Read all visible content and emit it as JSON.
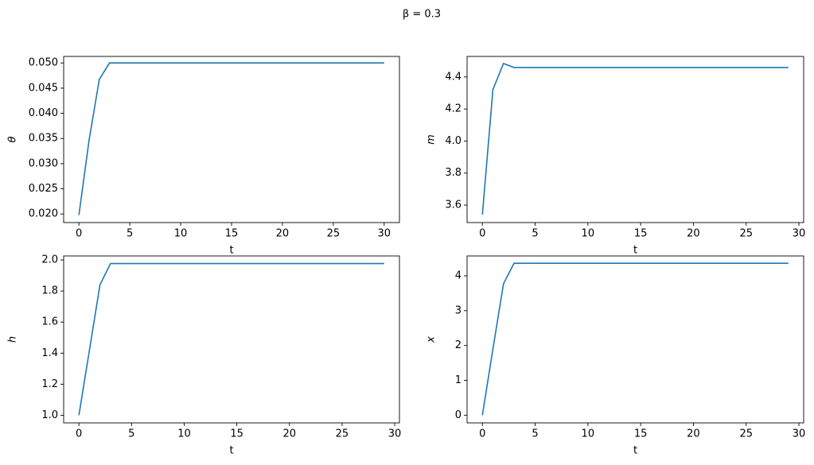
{
  "title": "β = 0.3",
  "chart_data": [
    {
      "type": "line",
      "xlabel": "t",
      "ylabel": "θ",
      "x": [
        0,
        1,
        2,
        3,
        4,
        5,
        6,
        7,
        8,
        9,
        10,
        11,
        12,
        13,
        14,
        15,
        16,
        17,
        18,
        19,
        20,
        21,
        22,
        23,
        24,
        25,
        26,
        27,
        28,
        29,
        30
      ],
      "series": [
        {
          "color": "#1f77b4",
          "values": [
            0.0198,
            0.0347,
            0.0467,
            0.05,
            0.05,
            0.05,
            0.05,
            0.05,
            0.05,
            0.05,
            0.05,
            0.05,
            0.05,
            0.05,
            0.05,
            0.05,
            0.05,
            0.05,
            0.05,
            0.05,
            0.05,
            0.05,
            0.05,
            0.05,
            0.05,
            0.05,
            0.05,
            0.05,
            0.05,
            0.05,
            0.05
          ]
        }
      ],
      "xlim": [
        -1.5,
        31.5
      ],
      "xticks": [
        0,
        5,
        10,
        15,
        20,
        25,
        30
      ],
      "ylim": [
        0.0183,
        0.0513
      ],
      "yticks": [
        {
          "value": 0.02,
          "label": "0.020"
        },
        0.025,
        {
          "value": 0.03,
          "label": "0.030"
        },
        0.035,
        {
          "value": 0.04,
          "label": "0.040"
        },
        0.045,
        {
          "value": 0.05,
          "label": "0.050"
        }
      ]
    },
    {
      "type": "line",
      "xlabel": "t",
      "ylabel": "m",
      "x": [
        0,
        1,
        2,
        3,
        4,
        5,
        6,
        7,
        8,
        9,
        10,
        11,
        12,
        13,
        14,
        15,
        16,
        17,
        18,
        19,
        20,
        21,
        22,
        23,
        24,
        25,
        26,
        27,
        28,
        29
      ],
      "series": [
        {
          "color": "#1f77b4",
          "values": [
            3.541,
            4.321,
            4.484,
            4.459,
            4.459,
            4.459,
            4.459,
            4.459,
            4.459,
            4.459,
            4.459,
            4.459,
            4.459,
            4.459,
            4.459,
            4.459,
            4.459,
            4.459,
            4.459,
            4.459,
            4.459,
            4.459,
            4.459,
            4.459,
            4.459,
            4.459,
            4.459,
            4.459,
            4.459,
            4.459
          ]
        }
      ],
      "xlim": [
        -1.45,
        30.45
      ],
      "xticks": [
        0,
        5,
        10,
        15,
        20,
        25,
        30
      ],
      "ylim": [
        3.491,
        4.528
      ],
      "yticks": [
        3.6,
        3.8,
        {
          "value": 4,
          "label": "4.0"
        },
        4.2,
        4.4
      ]
    },
    {
      "type": "line",
      "xlabel": "t",
      "ylabel": "h",
      "x": [
        0,
        1,
        2,
        3,
        4,
        5,
        6,
        7,
        8,
        9,
        10,
        11,
        12,
        13,
        14,
        15,
        16,
        17,
        18,
        19,
        20,
        21,
        22,
        23,
        24,
        25,
        26,
        27,
        28,
        29
      ],
      "series": [
        {
          "color": "#1f77b4",
          "values": [
            1.0,
            1.42,
            1.84,
            1.977,
            1.977,
            1.977,
            1.977,
            1.977,
            1.977,
            1.977,
            1.977,
            1.977,
            1.977,
            1.977,
            1.977,
            1.977,
            1.977,
            1.977,
            1.977,
            1.977,
            1.977,
            1.977,
            1.977,
            1.977,
            1.977,
            1.977,
            1.977,
            1.977,
            1.977,
            1.977
          ]
        }
      ],
      "xlim": [
        -1.45,
        30.45
      ],
      "xticks": [
        0,
        5,
        10,
        15,
        20,
        25,
        30
      ],
      "ylim": [
        0.951,
        2.026
      ],
      "yticks": [
        {
          "value": 1,
          "label": "1.0"
        },
        1.2,
        1.4,
        1.6,
        1.8,
        {
          "value": 2,
          "label": "2.0"
        }
      ]
    },
    {
      "type": "line",
      "xlabel": "t",
      "ylabel": "x",
      "x": [
        0,
        1,
        2,
        3,
        4,
        5,
        6,
        7,
        8,
        9,
        10,
        11,
        12,
        13,
        14,
        15,
        16,
        17,
        18,
        19,
        20,
        21,
        22,
        23,
        24,
        25,
        26,
        27,
        28,
        29
      ],
      "series": [
        {
          "color": "#1f77b4",
          "values": [
            0,
            1.9,
            3.77,
            4.36,
            4.36,
            4.36,
            4.36,
            4.36,
            4.36,
            4.36,
            4.36,
            4.36,
            4.36,
            4.36,
            4.36,
            4.36,
            4.36,
            4.36,
            4.36,
            4.36,
            4.36,
            4.36,
            4.36,
            4.36,
            4.36,
            4.36,
            4.36,
            4.36,
            4.36,
            4.36
          ]
        }
      ],
      "xlim": [
        -1.45,
        30.45
      ],
      "xticks": [
        0,
        5,
        10,
        15,
        20,
        25,
        30
      ],
      "ylim": [
        -0.22,
        4.57
      ],
      "yticks": [
        0,
        1,
        2,
        3,
        4
      ]
    }
  ]
}
